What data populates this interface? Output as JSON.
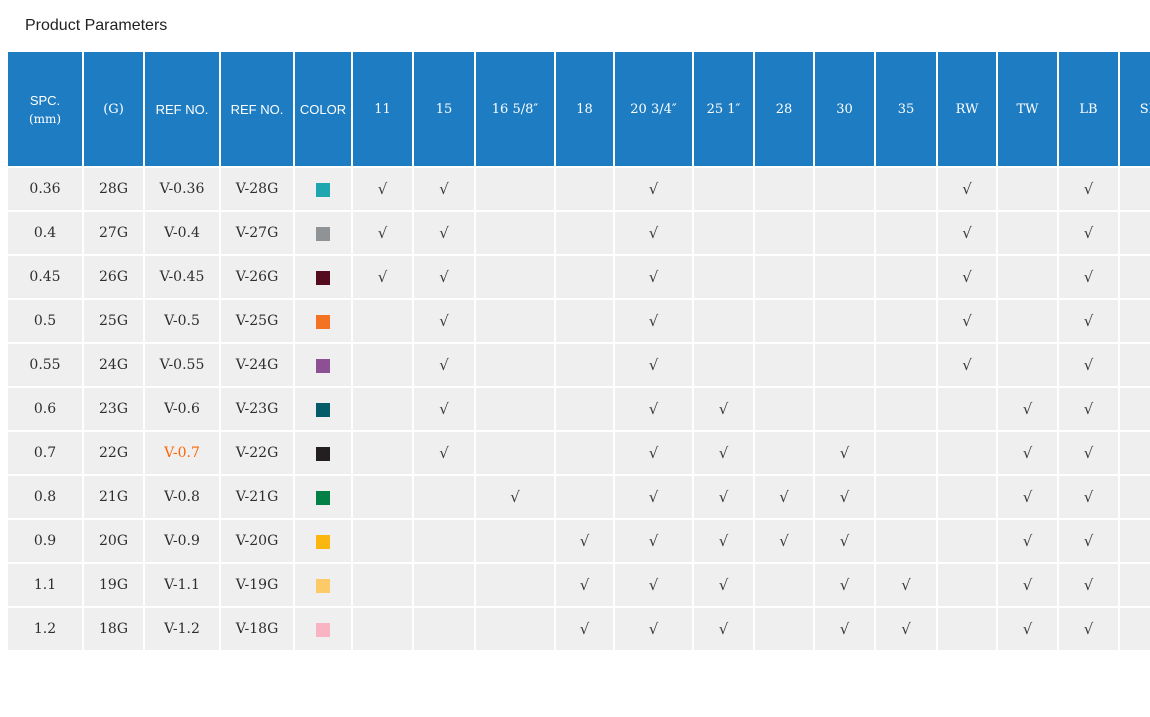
{
  "title": "Product Parameters",
  "check_glyph": "√",
  "colors": {
    "header_bg": "#1e7dc2",
    "cell_bg": "#efefef",
    "check_color": "#3a3a3a",
    "highlight_orange": "#ff6600"
  },
  "table": {
    "headers": [
      {
        "label": "SPC.",
        "sub": "(mm)"
      },
      {
        "label": "(G)"
      },
      {
        "label": "REF NO."
      },
      {
        "label": "REF NO."
      },
      {
        "label": "COLOR"
      },
      {
        "label": "11"
      },
      {
        "label": "15"
      },
      {
        "label": "16 5/8″"
      },
      {
        "label": "18"
      },
      {
        "label": "20 3/4″"
      },
      {
        "label": "25 1″"
      },
      {
        "label": "28"
      },
      {
        "label": "30"
      },
      {
        "label": "35"
      },
      {
        "label": "RW"
      },
      {
        "label": "TW"
      },
      {
        "label": "LB"
      },
      {
        "label": "SB"
      }
    ],
    "size_columns": [
      "11",
      "15",
      "16 5/8″",
      "18",
      "20 3/4″",
      "25 1″",
      "28",
      "30",
      "35",
      "RW",
      "TW",
      "LB",
      "SB"
    ],
    "rows": [
      {
        "spc": "0.36",
        "gauge": "28G",
        "ref_no": "V-0.36",
        "ref_no_g": "V-28G",
        "color_hex": "#1fa6ae",
        "highlight": false,
        "checks": [
          "11",
          "15",
          "20 3/4″",
          "RW",
          "LB"
        ]
      },
      {
        "spc": "0.4",
        "gauge": "27G",
        "ref_no": "V-0.4",
        "ref_no_g": "V-27G",
        "color_hex": "#909396",
        "highlight": false,
        "checks": [
          "11",
          "15",
          "20 3/4″",
          "RW",
          "LB"
        ]
      },
      {
        "spc": "0.45",
        "gauge": "26G",
        "ref_no": "V-0.45",
        "ref_no_g": "V-26G",
        "color_hex": "#530b1d",
        "highlight": false,
        "checks": [
          "11",
          "15",
          "20 3/4″",
          "RW",
          "LB"
        ]
      },
      {
        "spc": "0.5",
        "gauge": "25G",
        "ref_no": "V-0.5",
        "ref_no_g": "V-25G",
        "color_hex": "#f47323",
        "highlight": false,
        "checks": [
          "15",
          "20 3/4″",
          "RW",
          "LB"
        ]
      },
      {
        "spc": "0.55",
        "gauge": "24G",
        "ref_no": "V-0.55",
        "ref_no_g": "V-24G",
        "color_hex": "#8d5094",
        "highlight": false,
        "checks": [
          "15",
          "20 3/4″",
          "RW",
          "LB"
        ]
      },
      {
        "spc": "0.6",
        "gauge": "23G",
        "ref_no": "V-0.6",
        "ref_no_g": "V-23G",
        "color_hex": "#055c69",
        "highlight": false,
        "checks": [
          "15",
          "20 3/4″",
          "25 1″",
          "TW",
          "LB"
        ]
      },
      {
        "spc": "0.7",
        "gauge": "22G",
        "ref_no": "V-0.7",
        "ref_no_g": "V-22G",
        "color_hex": "#231f20",
        "highlight": true,
        "checks": [
          "15",
          "20 3/4″",
          "25 1″",
          "30",
          "TW",
          "LB"
        ]
      },
      {
        "spc": "0.8",
        "gauge": "21G",
        "ref_no": "V-0.8",
        "ref_no_g": "V-21G",
        "color_hex": "#038045",
        "highlight": false,
        "checks": [
          "16 5/8″",
          "20 3/4″",
          "25 1″",
          "28",
          "30",
          "TW",
          "LB"
        ]
      },
      {
        "spc": "0.9",
        "gauge": "20G",
        "ref_no": "V-0.9",
        "ref_no_g": "V-20G",
        "color_hex": "#fbb60f",
        "highlight": false,
        "checks": [
          "18",
          "20 3/4″",
          "25 1″",
          "28",
          "30",
          "TW",
          "LB"
        ]
      },
      {
        "spc": "1.1",
        "gauge": "19G",
        "ref_no": "V-1.1",
        "ref_no_g": "V-19G",
        "color_hex": "#fccb67",
        "highlight": false,
        "checks": [
          "18",
          "20 3/4″",
          "25 1″",
          "30",
          "35",
          "TW",
          "LB"
        ]
      },
      {
        "spc": "1.2",
        "gauge": "18G",
        "ref_no": "V-1.2",
        "ref_no_g": "V-18G",
        "color_hex": "#f9b4c3",
        "highlight": false,
        "checks": [
          "18",
          "20 3/4″",
          "25 1″",
          "30",
          "35",
          "TW",
          "LB"
        ]
      }
    ]
  }
}
